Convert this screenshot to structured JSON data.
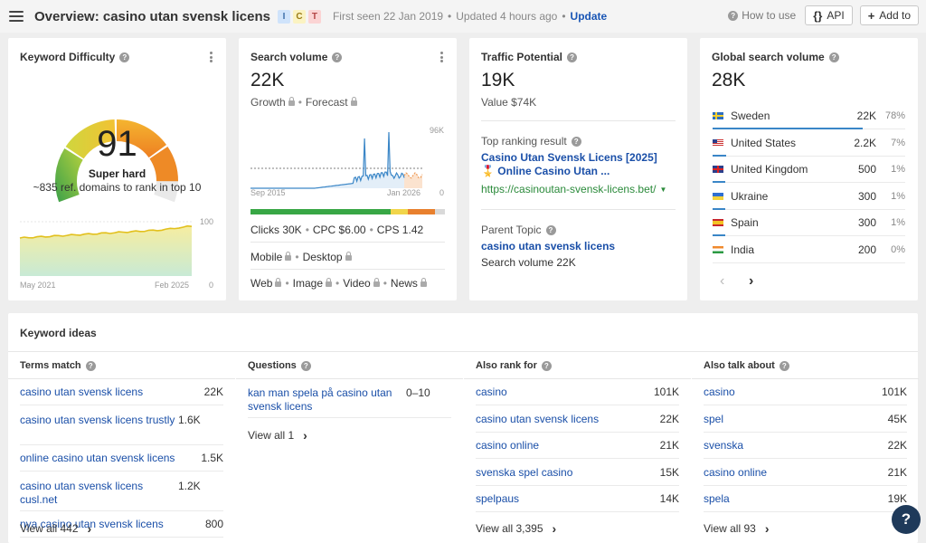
{
  "header": {
    "title": "Overview: casino utan svensk licens",
    "badges": [
      {
        "label": "I",
        "bg": "#cfe3fb",
        "fg": "#3c6ea8"
      },
      {
        "label": "C",
        "bg": "#fbf3c2",
        "fg": "#9a7b15"
      },
      {
        "label": "T",
        "bg": "#fbd4d4",
        "fg": "#b34646"
      }
    ],
    "first_seen": "First seen 22 Jan 2019",
    "updated": "Updated 4 hours ago",
    "update_link": "Update",
    "how_to_use": "How to use",
    "api_label": "API",
    "add_to_label": "Add to"
  },
  "kd": {
    "title": "Keyword Difficulty",
    "value": "91",
    "rating": "Super hard",
    "note": "~835 ref. domains to rank in top 10",
    "gauge_level": 0.91,
    "chart_ymax": "100",
    "chart_ymin": "0",
    "chart_xstart": "May 2021",
    "chart_xend": "Feb 2025"
  },
  "sv": {
    "title": "Search volume",
    "value": "22K",
    "growth": "Growth",
    "forecast": "Forecast",
    "chart_ymax": "96K",
    "chart_ymin": "0",
    "chart_xstart": "Sep 2015",
    "chart_xend": "Jan 2026",
    "clicks": "Clicks 30K",
    "cpc": "CPC $6.00",
    "cps": "CPS 1.42",
    "mobile": "Mobile",
    "desktop": "Desktop",
    "web": "Web",
    "image": "Image",
    "video": "Video",
    "news": "News",
    "bar_colors": [
      "#38a745",
      "#f1d54a",
      "#e8802e",
      "#d9d9d9"
    ]
  },
  "tp": {
    "title": "Traffic Potential",
    "value": "19K",
    "value_label": "Value $74K",
    "top_result_label": "Top ranking result",
    "top_result_title": "Casino Utan Svensk Licens [2025] 🎖️ Online Casino Utan ...",
    "top_result_url": "https://casinoutan-svensk-licens.bet/",
    "parent_topic_label": "Parent Topic",
    "parent_topic": "casino utan svensk licens",
    "parent_volume": "Search volume 22K"
  },
  "gsv": {
    "title": "Global search volume",
    "value": "28K",
    "countries": [
      {
        "name": "Sweden",
        "value": "22K",
        "pct": "78%",
        "flag": "se",
        "share": 0.78
      },
      {
        "name": "United States",
        "value": "2.2K",
        "pct": "7%",
        "flag": "us",
        "share": 0.07
      },
      {
        "name": "United Kingdom",
        "value": "500",
        "pct": "1%",
        "flag": "gb",
        "share": 0.01
      },
      {
        "name": "Ukraine",
        "value": "300",
        "pct": "1%",
        "flag": "ua",
        "share": 0.01
      },
      {
        "name": "Spain",
        "value": "300",
        "pct": "1%",
        "flag": "es",
        "share": 0.01
      },
      {
        "name": "India",
        "value": "200",
        "pct": "0%",
        "flag": "in",
        "share": 0.0
      }
    ]
  },
  "ideas": {
    "title": "Keyword ideas",
    "columns": [
      {
        "title": "Terms match",
        "rows": [
          {
            "k": "casino utan svensk licens",
            "v": "22K"
          },
          {
            "k": "casino utan svensk licens trustly",
            "v": "1.6K"
          },
          {
            "k": "online casino utan svensk licens",
            "v": "1.5K"
          },
          {
            "k": "casino utan svensk licens cusl.net",
            "v": "1.2K"
          },
          {
            "k": "nya casino utan svensk licens",
            "v": "800"
          }
        ],
        "view_all": "View all 442"
      },
      {
        "title": "Questions",
        "rows": [
          {
            "k": "kan man spela på casino utan svensk licens",
            "v": "0–10"
          }
        ],
        "view_all": "View all 1"
      },
      {
        "title": "Also rank for",
        "rows": [
          {
            "k": "casino",
            "v": "101K"
          },
          {
            "k": "casino utan svensk licens",
            "v": "22K"
          },
          {
            "k": "casino online",
            "v": "21K"
          },
          {
            "k": "svenska spel casino",
            "v": "15K"
          },
          {
            "k": "spelpaus",
            "v": "14K"
          }
        ],
        "view_all": "View all 3,395"
      },
      {
        "title": "Also talk about",
        "rows": [
          {
            "k": "casino",
            "v": "101K"
          },
          {
            "k": "spel",
            "v": "45K"
          },
          {
            "k": "svenska",
            "v": "22K"
          },
          {
            "k": "casino online",
            "v": "21K"
          },
          {
            "k": "spela",
            "v": "19K"
          }
        ],
        "view_all": "View all 93"
      }
    ]
  },
  "help_label": "?"
}
